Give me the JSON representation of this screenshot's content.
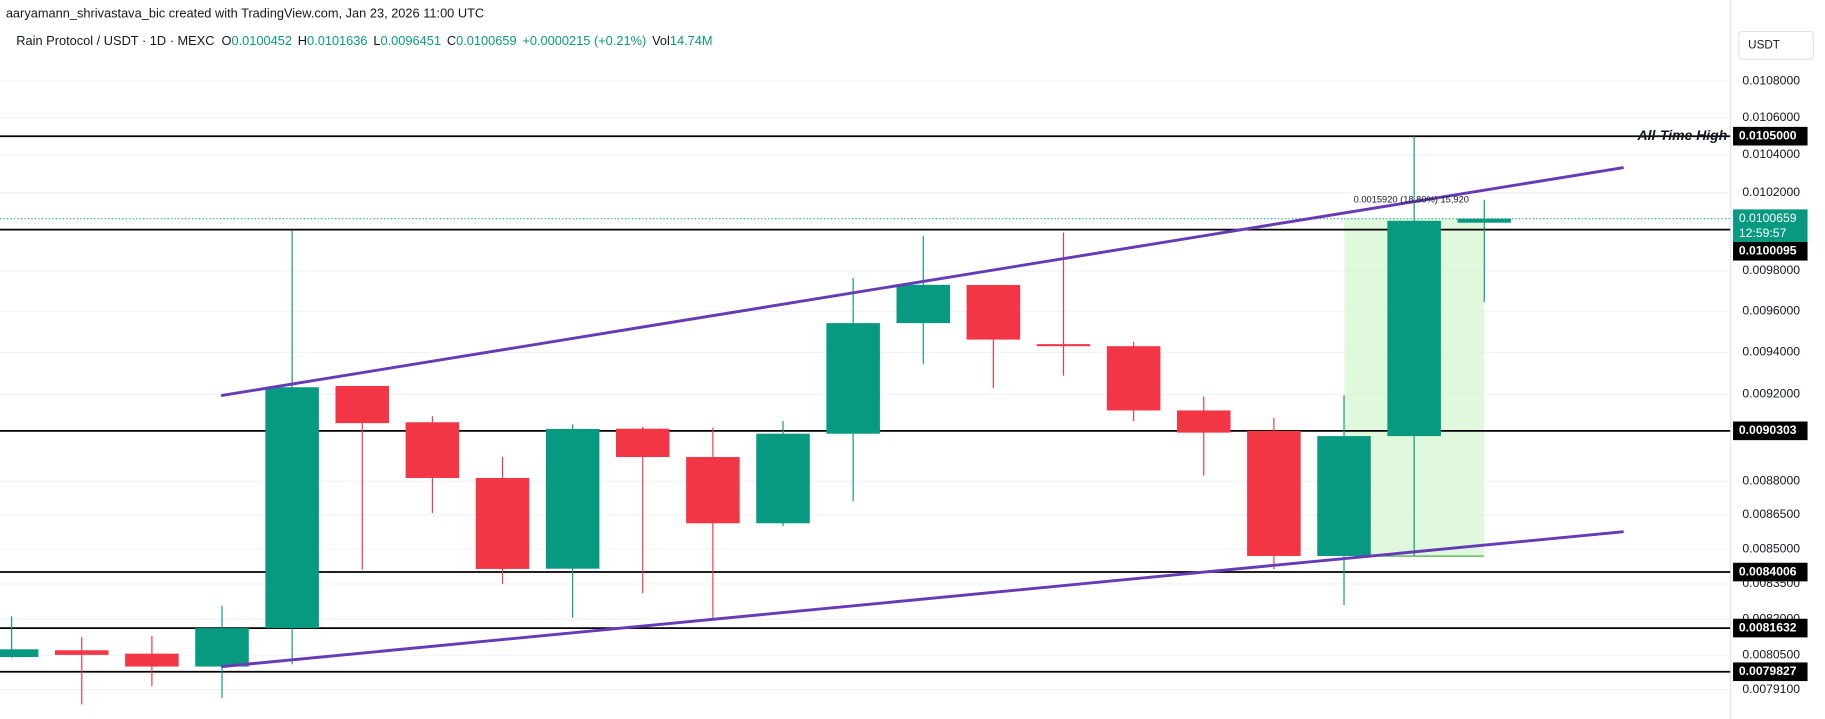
{
  "chart_data": {
    "type": "candlestick",
    "credit": "aaryamann_shrivastava_bic created with TradingView.com, Jan 23, 2026 11:00 UTC",
    "symbol": "Rain Protocol / USDT · 1D · MEXC",
    "ohlc_keys": [
      "O",
      "H",
      "L",
      "C"
    ],
    "change": "+0.0000215 (+0.21%)",
    "volume_key": "Vol",
    "volume": "14.74M",
    "currency_button": "USDT",
    "log_scale": true,
    "grid": true,
    "up_color": "#089981",
    "down_color": "#f23645",
    "ylim": [
      0.011258,
      0.007792
    ],
    "yticks": [
      {
        "value": 0.0108,
        "label": "0.0108000"
      },
      {
        "value": 0.0106,
        "label": "0.0106000"
      },
      {
        "value": 0.0104,
        "label": "0.0104000"
      },
      {
        "value": 0.0102,
        "label": "0.0102000"
      },
      {
        "value": 0.0098,
        "label": "0.0098000"
      },
      {
        "value": 0.0096,
        "label": "0.0096000"
      },
      {
        "value": 0.0094,
        "label": "0.0094000"
      },
      {
        "value": 0.0092,
        "label": "0.0092000"
      },
      {
        "value": 0.0088,
        "label": "0.0088000"
      },
      {
        "value": 0.00865,
        "label": "0.0086500"
      },
      {
        "value": 0.0085,
        "label": "0.0085000"
      },
      {
        "value": 0.00835,
        "label": "0.0083500"
      },
      {
        "value": 0.0082,
        "label": "0.0082000"
      },
      {
        "value": 0.00805,
        "label": "0.0080500"
      },
      {
        "value": 0.00791,
        "label": "0.0079100"
      }
    ],
    "open": [
      0.008043,
      0.008071,
      0.008057,
      0.008004,
      0.008163,
      0.00924,
      0.00907,
      0.008815,
      0.008415,
      0.00904,
      0.00891,
      0.008613,
      0.009017,
      0.009542,
      0.00973,
      0.00944,
      0.00943,
      0.009125,
      0.00903,
      0.00847,
      0.009006,
      0.0100452
    ],
    "high": [
      0.008212,
      0.008125,
      0.00813,
      0.008257,
      0.010007,
      0.00924,
      0.009098,
      0.00891,
      0.00906,
      0.00905,
      0.009045,
      0.009076,
      0.009765,
      0.009977,
      0.00973,
      0.009995,
      0.00945,
      0.00919,
      0.00909,
      0.009196,
      0.0105,
      0.0101636
    ],
    "low": [
      0.00804,
      0.00785,
      0.007924,
      0.007876,
      0.008013,
      0.00841,
      0.008658,
      0.00835,
      0.008207,
      0.00831,
      0.0082,
      0.0086,
      0.00871,
      0.009345,
      0.00923,
      0.009289,
      0.009075,
      0.008826,
      0.008414,
      0.00826,
      0.00847,
      0.0096451
    ],
    "close": [
      0.008075,
      0.008052,
      0.008004,
      0.008163,
      0.009234,
      0.009066,
      0.008815,
      0.008414,
      0.009039,
      0.00891,
      0.008613,
      0.009017,
      0.009542,
      0.009731,
      0.009462,
      0.00943,
      0.009125,
      0.009022,
      0.00847,
      0.009006,
      0.010055,
      0.0100659
    ],
    "countdown": "12:59:57",
    "levels": [
      {
        "value": 0.0105,
        "label": "0.0105000"
      },
      0.0100095,
      0.0090303,
      0.0084006,
      0.0081632,
      0.0079827
    ],
    "level_annotation": "All-Time High",
    "measure_label": "0.0015920 (18.80%) 15,920"
  }
}
